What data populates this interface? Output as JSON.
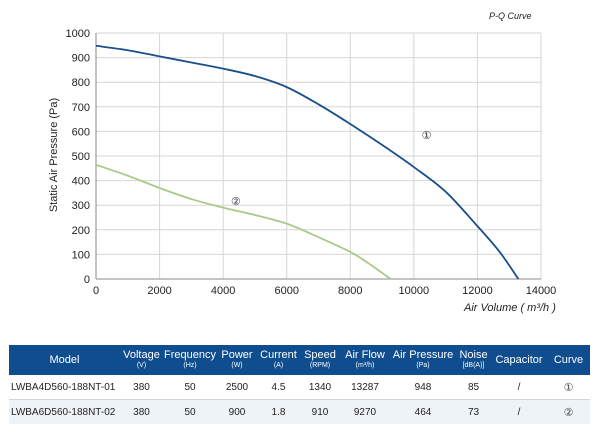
{
  "chart_data": {
    "type": "line",
    "title": "P-Q Curve",
    "xlabel": "Air Volume ( m³/h )",
    "ylabel": "Static Air Pressure  (Pa)",
    "xlim": [
      0,
      14000
    ],
    "ylim": [
      0,
      1000
    ],
    "x_ticks": [
      "0",
      "2000",
      "4000",
      "6000",
      "8000",
      "10000",
      "12000",
      "14000"
    ],
    "y_ticks": [
      "0",
      "100",
      "200",
      "300",
      "400",
      "500",
      "600",
      "700",
      "800",
      "900",
      "1000"
    ],
    "grid": true,
    "series": [
      {
        "name": "①",
        "color": "#1a4f87",
        "x": [
          0,
          1000,
          2000,
          3000,
          4000,
          5000,
          6000,
          7000,
          8000,
          9000,
          10000,
          11000,
          12000,
          12700,
          13287
        ],
        "y": [
          948,
          930,
          905,
          880,
          855,
          825,
          780,
          710,
          630,
          545,
          455,
          355,
          215,
          110,
          0
        ]
      },
      {
        "name": "②",
        "color": "#a9c98a",
        "x": [
          0,
          1000,
          2000,
          3000,
          4000,
          5000,
          6000,
          7000,
          8000,
          8500,
          9000,
          9270
        ],
        "y": [
          464,
          420,
          370,
          325,
          290,
          260,
          225,
          170,
          110,
          70,
          25,
          0
        ]
      }
    ]
  },
  "table": {
    "headers": [
      {
        "label": "Model",
        "unit": ""
      },
      {
        "label": "Voltage",
        "unit": "(V)"
      },
      {
        "label": "Frequency",
        "unit": "(Hz)"
      },
      {
        "label": "Power",
        "unit": "(W)"
      },
      {
        "label": "Current",
        "unit": "(A)"
      },
      {
        "label": "Speed",
        "unit": "(RPM)"
      },
      {
        "label": "Air Flow",
        "unit": "(m³/h)"
      },
      {
        "label": "Air Pressure",
        "unit": "(Pa)"
      },
      {
        "label": "Noise",
        "unit": "[dB(A)]"
      },
      {
        "label": "Capacitor",
        "unit": ""
      },
      {
        "label": "Curve",
        "unit": ""
      }
    ],
    "rows": [
      {
        "model": "LWBA4D560-188NT-01",
        "voltage": "380",
        "frequency": "50",
        "power": "2500",
        "current": "4.5",
        "speed": "1340",
        "air_flow": "13287",
        "air_pressure": "948",
        "noise": "85",
        "capacitor": "/",
        "curve": "①"
      },
      {
        "model": "LWBA6D560-188NT-02",
        "voltage": "380",
        "frequency": "50",
        "power": "900",
        "current": "1.8",
        "speed": "910",
        "air_flow": "9270",
        "air_pressure": "464",
        "noise": "73",
        "capacitor": "/",
        "curve": "②"
      }
    ]
  }
}
